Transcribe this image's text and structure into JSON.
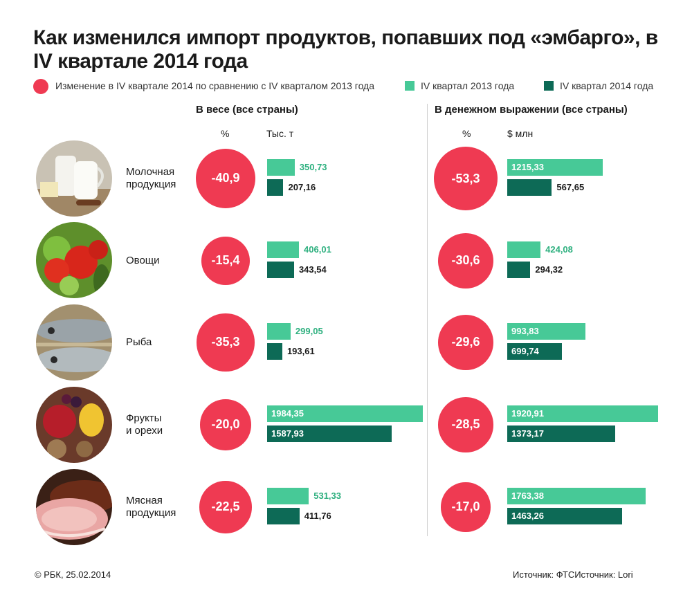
{
  "chart_data": {
    "type": "bar",
    "title": "Как изменился импорт продуктов, попавших под «эмбарго», в IV квартале 2014 года",
    "legend": [
      {
        "label": "Изменение в IV квартале 2014 по сравнению с IV кварталом 2013 года",
        "color": "#ef3a52"
      },
      {
        "label": "IV квартал 2013 года",
        "color": "#47c997"
      },
      {
        "label": "IV квартал 2014 года",
        "color": "#0d6a56"
      }
    ],
    "categories": [
      "Молочная\nпродукция",
      "Овощи",
      "Рыба",
      "Фрукты\nи орехи",
      "Мясная\nпродукция"
    ],
    "panels": [
      {
        "title": "В весе (все страны)",
        "pct_label": "%",
        "unit": "Тыс. т",
        "change": [
          "-40,9",
          "-15,4",
          "-35,3",
          "-20,0",
          "-22,5"
        ],
        "series": [
          {
            "name": "IV квартал 2013 года",
            "values": [
              350.73,
              406.01,
              299.05,
              1984.35,
              531.33
            ]
          },
          {
            "name": "IV квартал 2014 года",
            "values": [
              207.16,
              343.54,
              193.61,
              1587.93,
              411.76
            ]
          }
        ]
      },
      {
        "title": "В денежном выражении (все страны)",
        "pct_label": "%",
        "unit": "$ млн",
        "change": [
          "-53,3",
          "-30,6",
          "-29,6",
          "-28,5",
          "-17,0"
        ],
        "series": [
          {
            "name": "IV квартал 2013 года",
            "values": [
              1215.33,
              424.08,
              993.83,
              1920.91,
              1763.38
            ]
          },
          {
            "name": "IV квартал 2014 года",
            "values": [
              567.65,
              294.32,
              699.74,
              1373.17,
              1463.26
            ]
          }
        ]
      }
    ]
  },
  "footer": {
    "copyright": "© РБК, 25.02.2014",
    "source": "Источник: ФТСИсточник: Lori"
  },
  "icons": [
    "dairy-photo-icon",
    "vegetables-photo-icon",
    "fish-photo-icon",
    "fruits-nuts-photo-icon",
    "meat-photo-icon"
  ]
}
